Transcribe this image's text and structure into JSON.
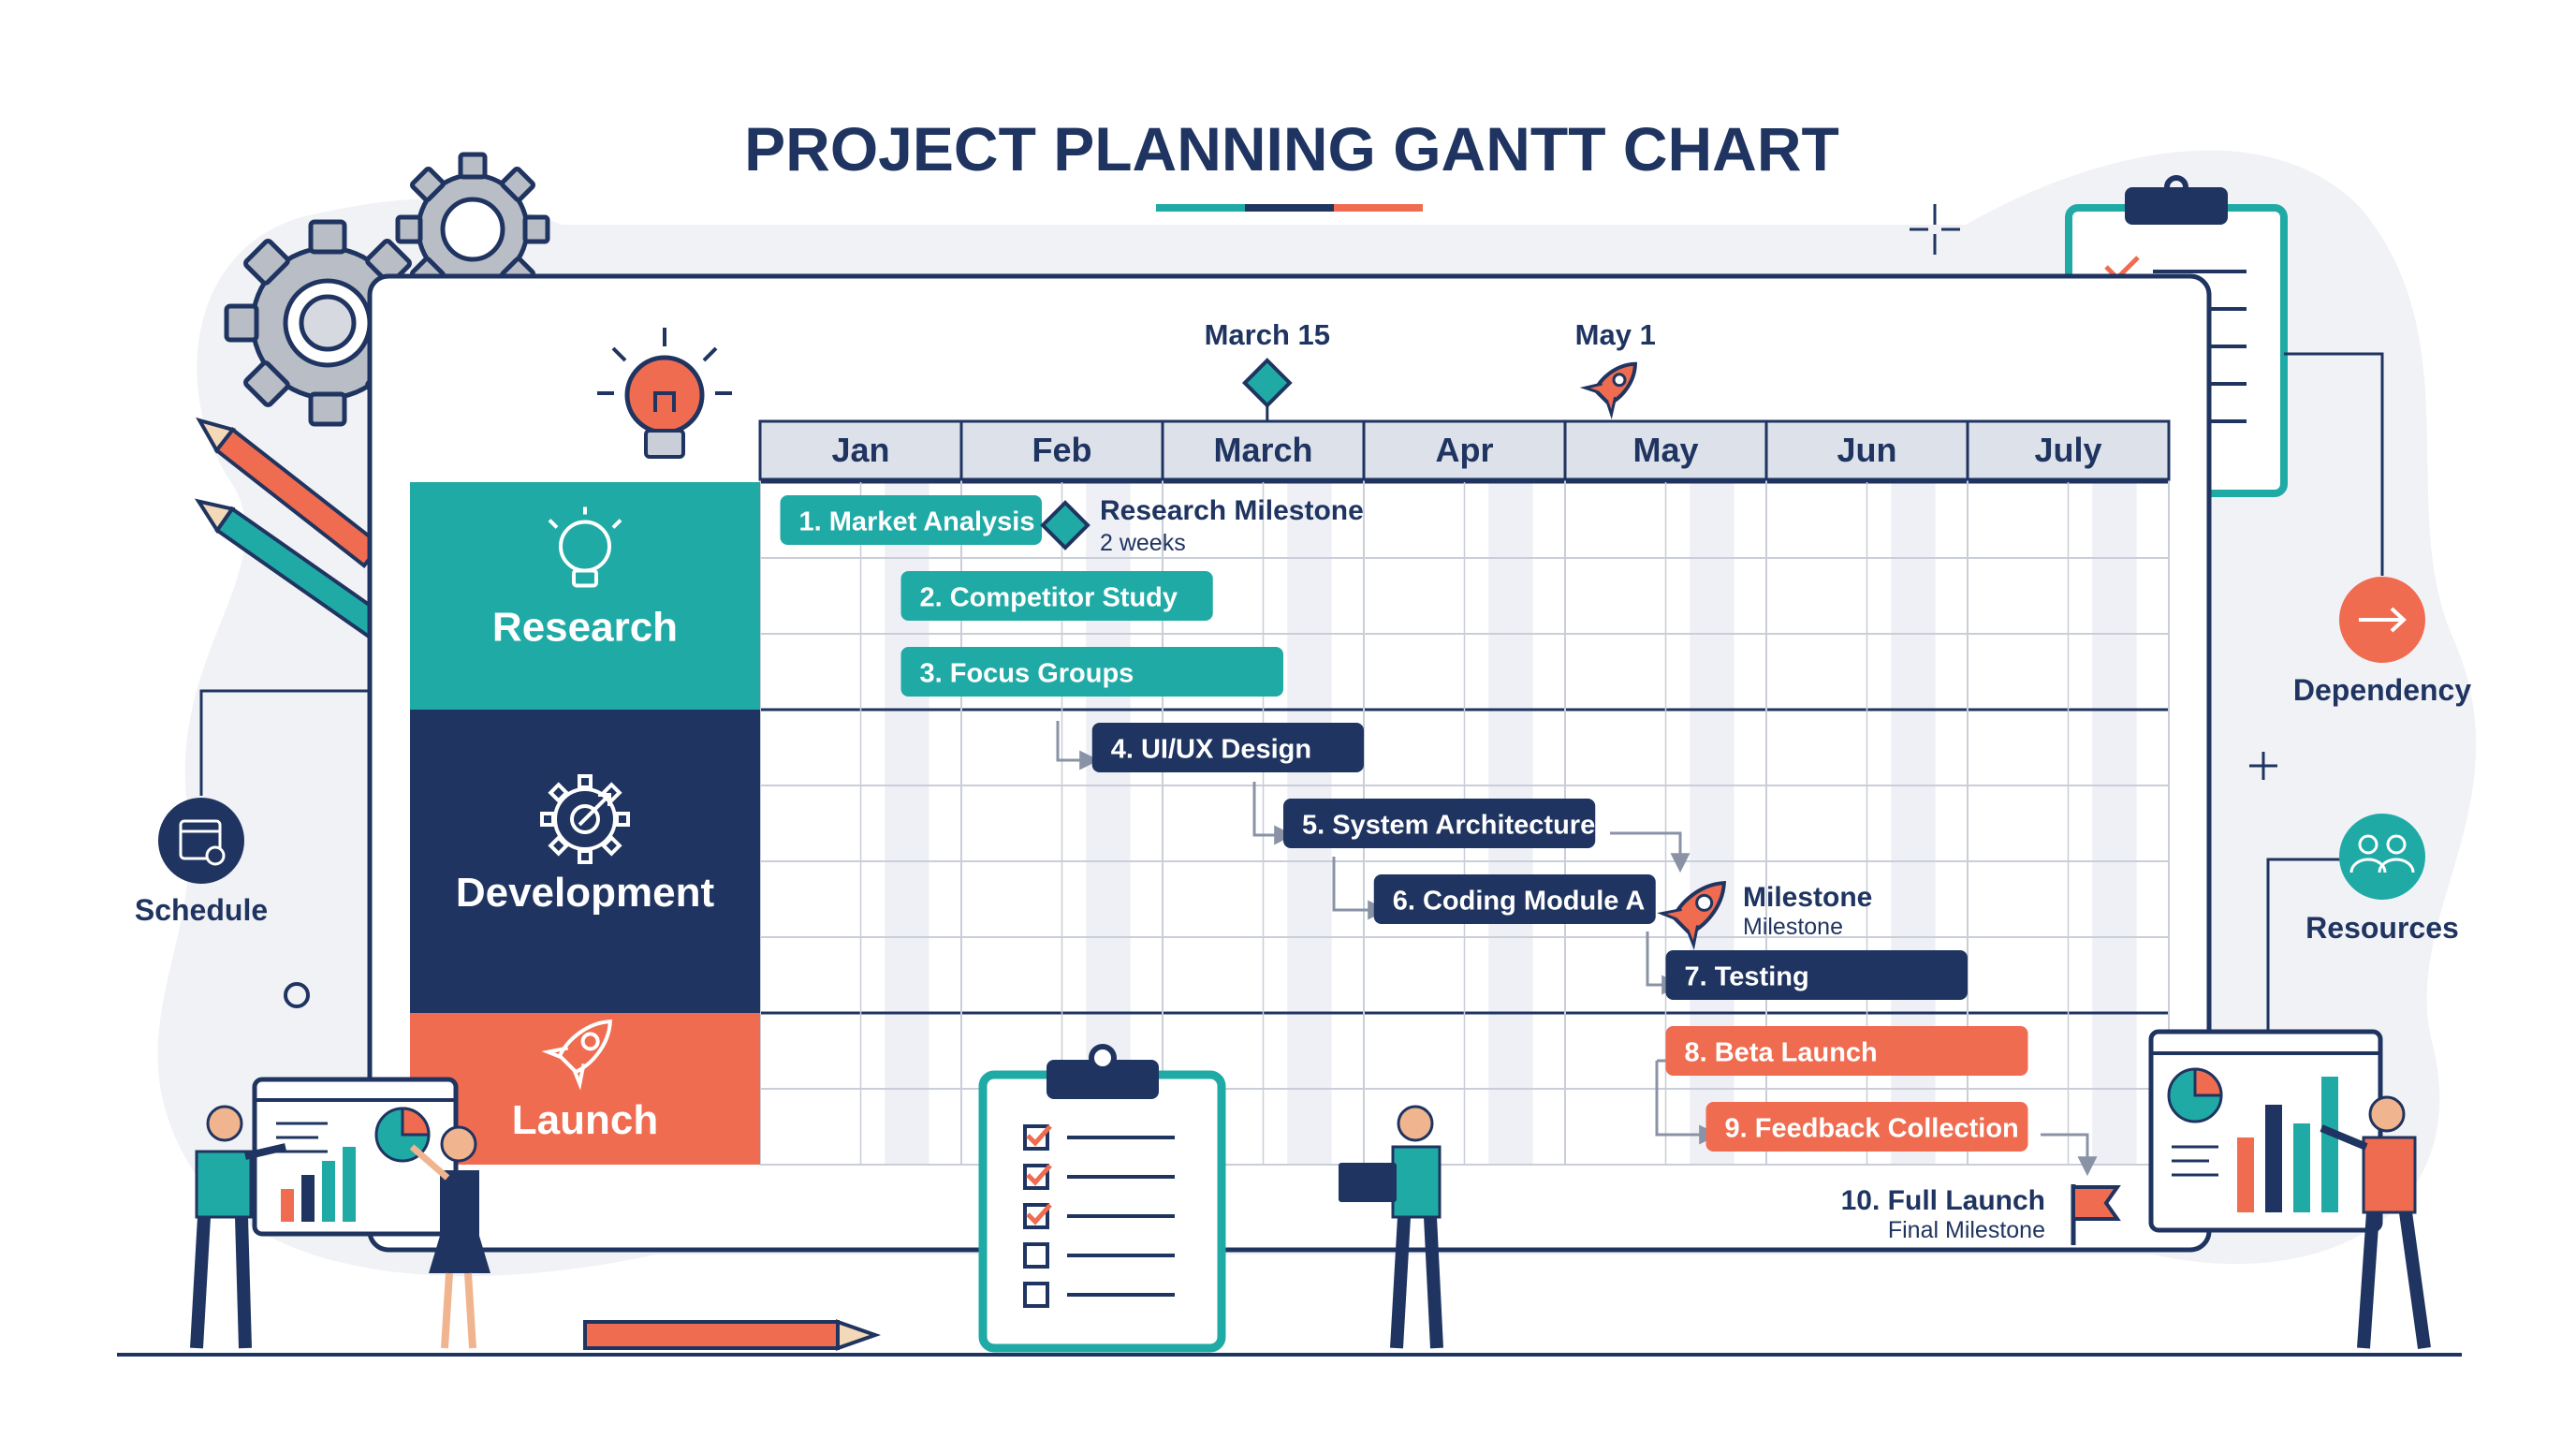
{
  "title": "PROJECT PLANNING GANTT CHART",
  "colors": {
    "navy": "#1f3460",
    "teal": "#20aaa6",
    "coral": "#ef6c50",
    "grid": "#c9ced8",
    "stripe": "#eef0f5"
  },
  "months": [
    "Jan",
    "Feb",
    "March",
    "Apr",
    "May",
    "Jun",
    "July"
  ],
  "markers": [
    {
      "label": "March 15",
      "month_position": 2.52,
      "icon": "diamond-icon"
    },
    {
      "label": "May 1",
      "month_position": 4.25,
      "icon": "rocket-icon"
    }
  ],
  "phases": [
    {
      "name": "Research",
      "color": "#20aaa6",
      "icon": "lightbulb-icon"
    },
    {
      "name": "Development",
      "color": "#1f3460",
      "icon": "gear-rocket-icon"
    },
    {
      "name": "Launch",
      "color": "#ef6c50",
      "icon": "rocket-icon"
    }
  ],
  "tasks": [
    {
      "label": "1. Market Analysis",
      "start": 0.1,
      "end": 1.4,
      "row": 0,
      "phase": 0
    },
    {
      "label": "2. Competitor Study",
      "start": 0.7,
      "end": 2.25,
      "row": 1,
      "phase": 0
    },
    {
      "label": "3. Focus Groups",
      "start": 0.7,
      "end": 2.6,
      "row": 2,
      "phase": 0
    },
    {
      "label": "4. UI/UX Design",
      "start": 1.65,
      "end": 3.0,
      "row": 3,
      "phase": 1
    },
    {
      "label": "5. System Architecture",
      "start": 2.6,
      "end": 4.15,
      "row": 4,
      "phase": 1
    },
    {
      "label": "6. Coding Module A",
      "start": 3.05,
      "end": 4.45,
      "row": 5,
      "phase": 1
    },
    {
      "label": "7. Testing",
      "start": 4.5,
      "end": 6.0,
      "row": 6,
      "phase": 1
    },
    {
      "label": "8. Beta Launch",
      "start": 4.5,
      "end": 6.3,
      "row": 7,
      "phase": 2
    },
    {
      "label": "9. Feedback Collection",
      "start": 4.7,
      "end": 6.3,
      "row": 8,
      "phase": 2
    }
  ],
  "milestones": [
    {
      "title": "Research Milestone",
      "subtitle": "2 weeks"
    },
    {
      "title": "Milestone",
      "subtitle": "Milestone"
    },
    {
      "title": "10. Full Launch",
      "subtitle": "Final Milestone"
    }
  ],
  "side_labels": {
    "schedule": "Schedule",
    "dependency": "Dependency",
    "resources": "Resources"
  }
}
